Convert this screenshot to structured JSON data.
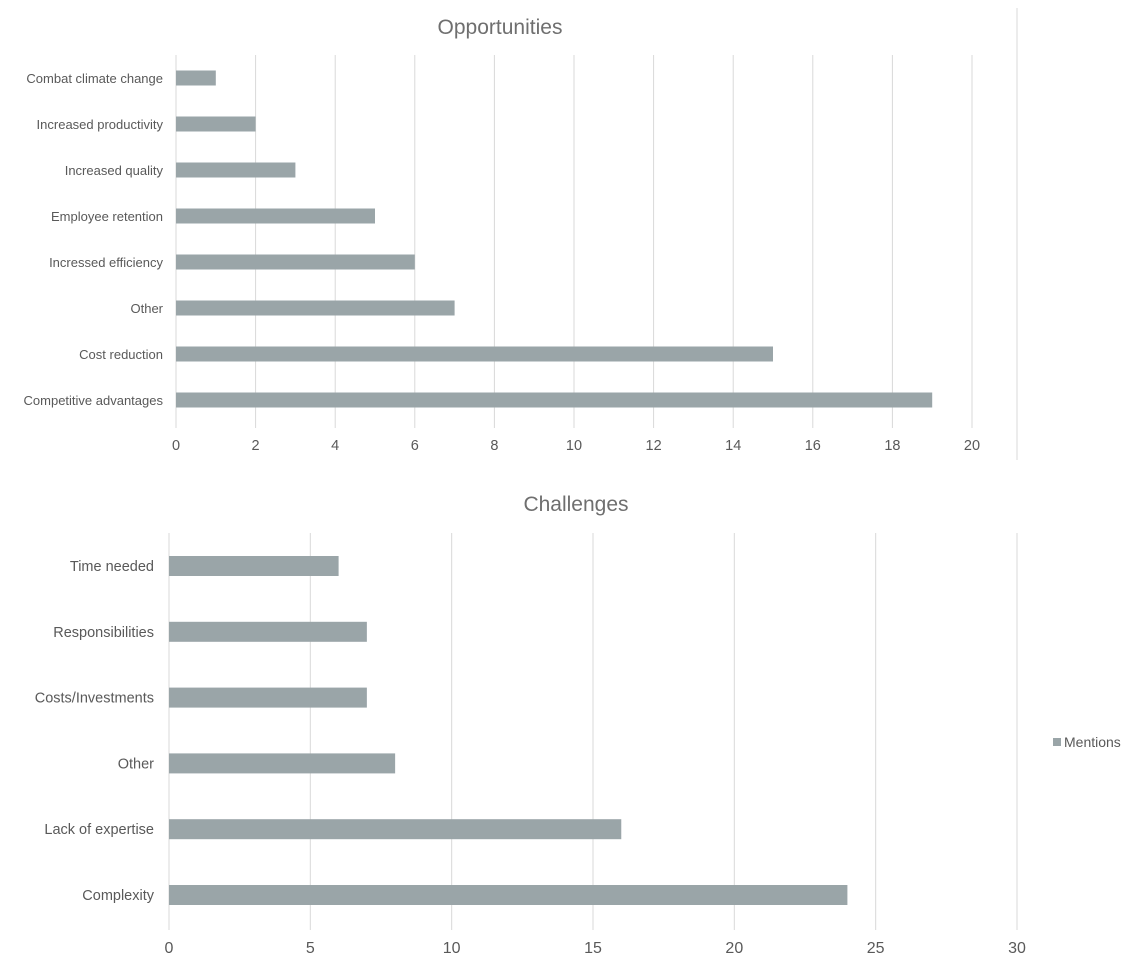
{
  "chart_data": [
    {
      "type": "bar",
      "orientation": "horizontal",
      "title": "Opportunities",
      "categories": [
        "Combat climate change",
        "Increased productivity",
        "Increased quality",
        "Employee retention",
        "Incressed efficiency",
        "Other",
        "Cost reduction",
        "Competitive advantages"
      ],
      "series": [
        {
          "name": "Mentions",
          "values": [
            1,
            2,
            3,
            5,
            6,
            7,
            15,
            19
          ]
        }
      ],
      "xlim": [
        0,
        20
      ],
      "xticks": [
        "0",
        "2",
        "4",
        "6",
        "8",
        "10",
        "12",
        "14",
        "16",
        "18",
        "20"
      ],
      "grid": "vertical",
      "bar_color": "#9aa5a8"
    },
    {
      "type": "bar",
      "orientation": "horizontal",
      "title": "Challenges",
      "categories": [
        "Time needed",
        "Responsibilities",
        "Costs/Investments",
        "Other",
        "Lack of expertise",
        "Complexity"
      ],
      "series": [
        {
          "name": "Mentions",
          "values": [
            6,
            7,
            7,
            8,
            16,
            24
          ]
        }
      ],
      "xlim": [
        0,
        30
      ],
      "xticks": [
        "0",
        "5",
        "10",
        "15",
        "20",
        "25",
        "30"
      ],
      "grid": "vertical",
      "bar_color": "#9aa5a8"
    }
  ],
  "legend": {
    "label": "Mentions",
    "position": "right",
    "color": "#9aa5a8"
  }
}
